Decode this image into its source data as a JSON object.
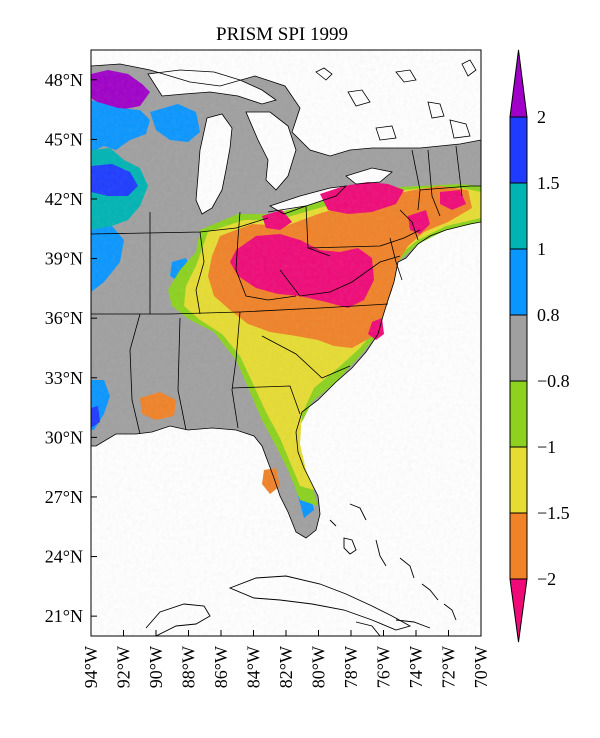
{
  "map": {
    "title": "PRISM SPI 1999",
    "lat_ticks": [
      "48°N",
      "45°N",
      "42°N",
      "39°N",
      "36°N",
      "33°N",
      "30°N",
      "27°N",
      "24°N",
      "21°N"
    ],
    "lon_ticks": [
      "94°W",
      "92°W",
      "90°W",
      "88°W",
      "86°W",
      "84°W",
      "82°W",
      "80°W",
      "78°W",
      "76°W",
      "74°W",
      "72°W",
      "70°W"
    ],
    "extent": {
      "lon_min": -94,
      "lon_max": -70,
      "lat_min": 20,
      "lat_max": 49.5
    }
  },
  "colorbar": {
    "labels": [
      "2",
      "1.5",
      "1",
      "0.8",
      "−0.8",
      "−1",
      "−1.5",
      "−2"
    ],
    "classes": [
      {
        "range": "> 2",
        "color": "#a000c8"
      },
      {
        "range": "1.5 to 2",
        "color": "#1e3cff"
      },
      {
        "range": "1 to 1.5",
        "color": "#00b4b4"
      },
      {
        "range": "0.8 to 1",
        "color": "#0a96ff"
      },
      {
        "range": "-0.8 to 0.8",
        "color": "#a0a0a0"
      },
      {
        "range": "-1 to -0.8",
        "color": "#8cd21e"
      },
      {
        "range": "-1.5 to -1",
        "color": "#e6dc32"
      },
      {
        "range": "-2 to -1.5",
        "color": "#f08228"
      },
      {
        "range": "< -2",
        "color": "#ef0a78"
      }
    ]
  }
}
